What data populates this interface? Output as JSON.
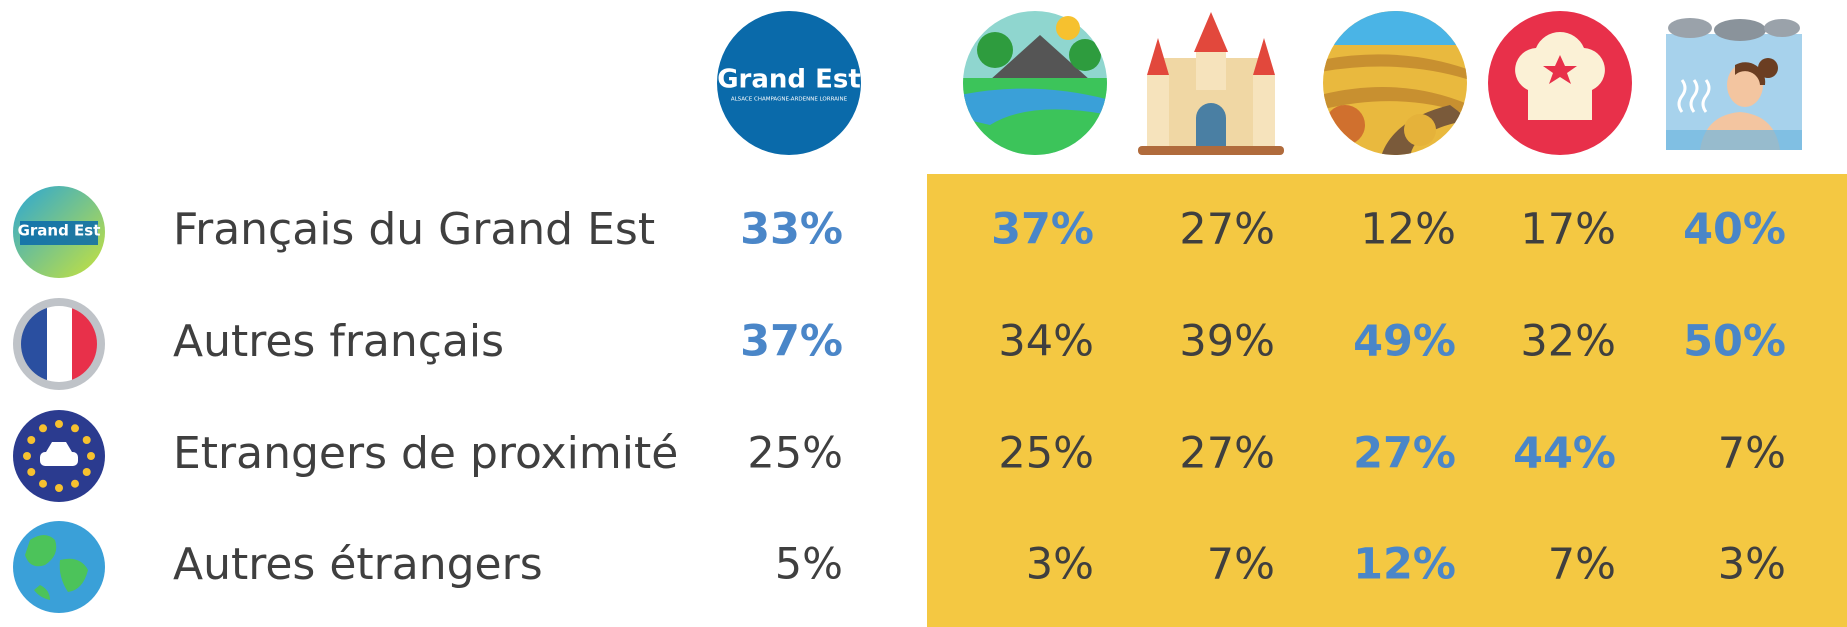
{
  "header": {
    "logo": {
      "title": "Grand Est",
      "subtitle": "ALSACE CHAMPAGNE-ARDENNE LORRAINE"
    }
  },
  "table": {
    "rows": [
      {
        "label": "Français du Grand Est",
        "cells": [
          {
            "text": "33%",
            "highlight": true
          },
          {
            "text": "37%",
            "highlight": true
          },
          {
            "text": "27%",
            "highlight": false
          },
          {
            "text": "12%",
            "highlight": false
          },
          {
            "text": "17%",
            "highlight": false
          },
          {
            "text": "40%",
            "highlight": true
          }
        ]
      },
      {
        "label": "Autres français",
        "cells": [
          {
            "text": "37%",
            "highlight": true
          },
          {
            "text": "34%",
            "highlight": false
          },
          {
            "text": "39%",
            "highlight": false
          },
          {
            "text": "49%",
            "highlight": true
          },
          {
            "text": "32%",
            "highlight": false
          },
          {
            "text": "50%",
            "highlight": true
          }
        ]
      },
      {
        "label": "Etrangers de proximité",
        "cells": [
          {
            "text": "25%",
            "highlight": false
          },
          {
            "text": "25%",
            "highlight": false
          },
          {
            "text": "27%",
            "highlight": false
          },
          {
            "text": "27%",
            "highlight": true
          },
          {
            "text": "44%",
            "highlight": true
          },
          {
            "text": "7%",
            "highlight": false
          }
        ]
      },
      {
        "label": "Autres étrangers",
        "cells": [
          {
            "text": "5%",
            "highlight": false
          },
          {
            "text": "3%",
            "highlight": false
          },
          {
            "text": "7%",
            "highlight": false
          },
          {
            "text": "12%",
            "highlight": true
          },
          {
            "text": "7%",
            "highlight": false
          },
          {
            "text": "3%",
            "highlight": false
          }
        ]
      }
    ]
  }
}
